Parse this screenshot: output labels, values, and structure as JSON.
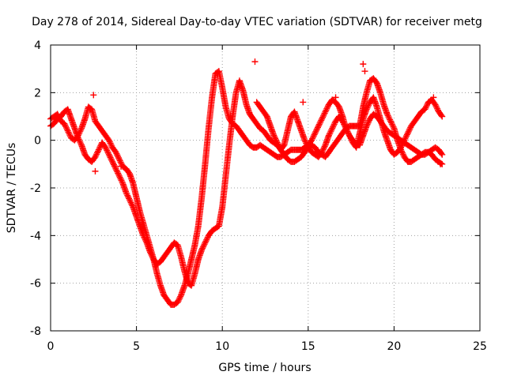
{
  "chart_data": {
    "type": "scatter",
    "title": "Day 278 of 2014, Sidereal Day-to-day VTEC variation (SDTVAR) for receiver metg",
    "xlabel": "GPS time / hours",
    "ylabel": "SDTVAR / TECUs",
    "xlim": [
      0,
      25
    ],
    "ylim": [
      -8,
      4
    ],
    "xticks": [
      0,
      5,
      10,
      15,
      20,
      25
    ],
    "yticks": [
      -8,
      -6,
      -4,
      -2,
      0,
      2,
      4
    ],
    "grid": true,
    "marker": "+",
    "series": [
      {
        "name": "SDTVAR",
        "color": "#ff0000",
        "segments": [
          {
            "x": [
              0.0,
              0.2,
              0.4,
              0.6,
              0.8,
              1.0,
              1.2,
              1.4,
              1.6,
              1.8,
              2.0,
              2.2,
              2.4,
              2.6,
              2.8,
              3.0,
              3.2,
              3.4,
              3.6,
              3.8,
              4.0,
              4.2,
              4.4,
              4.6,
              4.8,
              5.0,
              5.2,
              5.4,
              5.6,
              5.8,
              6.0,
              6.2,
              6.4,
              6.6,
              6.8,
              7.0,
              7.2,
              7.4,
              7.6,
              7.8,
              8.0,
              8.2,
              8.4,
              8.6,
              8.8,
              9.0,
              9.2,
              9.4,
              9.6,
              9.8,
              10.0,
              10.2,
              10.4,
              10.6,
              10.8,
              11.0,
              11.2,
              11.4,
              11.6,
              11.8,
              12.0,
              12.2,
              12.4,
              12.6,
              12.8,
              13.0,
              13.2,
              13.4,
              13.6,
              13.8,
              14.0,
              14.2,
              14.4,
              14.6,
              14.8,
              15.0,
              15.2,
              15.4,
              15.6,
              15.8,
              16.0,
              16.2,
              16.4,
              16.6,
              16.8,
              17.0,
              17.2,
              17.4,
              17.6,
              17.8,
              18.0,
              18.2,
              18.4,
              18.6,
              18.8,
              19.0,
              19.2,
              19.4,
              19.6,
              19.8,
              20.0,
              20.2,
              20.4,
              20.6,
              20.8,
              21.0,
              21.2,
              21.4,
              21.6,
              21.8,
              22.0,
              22.2,
              22.4,
              22.6,
              22.8
            ],
            "y": [
              0.9,
              1.0,
              1.1,
              0.8,
              0.7,
              0.4,
              0.1,
              0.0,
              0.2,
              0.5,
              0.9,
              1.4,
              1.3,
              0.8,
              0.6,
              0.4,
              0.2,
              0.0,
              -0.3,
              -0.5,
              -0.8,
              -1.1,
              -1.2,
              -1.4,
              -1.8,
              -2.4,
              -3.0,
              -3.5,
              -4.0,
              -4.5,
              -5.0,
              -5.6,
              -6.1,
              -6.5,
              -6.7,
              -6.9,
              -6.9,
              -6.8,
              -6.5,
              -6.1,
              -5.6,
              -5.0,
              -4.4,
              -3.6,
              -2.4,
              -1.0,
              0.5,
              1.8,
              2.8,
              2.9,
              2.2,
              1.4,
              0.9,
              0.7,
              0.6,
              0.4,
              0.2,
              0.0,
              -0.2,
              -0.3,
              -0.3,
              -0.2,
              -0.3,
              -0.4,
              -0.5,
              -0.6,
              -0.7,
              -0.7,
              -0.6,
              -0.5,
              -0.4,
              -0.4,
              -0.4,
              -0.4,
              -0.3,
              -0.2,
              0.0,
              0.3,
              0.6,
              0.9,
              1.2,
              1.5,
              1.7,
              1.6,
              1.4,
              1.0,
              0.5,
              0.2,
              0.0,
              -0.2,
              -0.2,
              0.2,
              0.6,
              0.9,
              1.1,
              1.0,
              0.8,
              0.6,
              0.4,
              0.3,
              0.2,
              0.1,
              0.0,
              -0.1,
              -0.2,
              -0.3,
              -0.4,
              -0.5,
              -0.6,
              -0.6,
              -0.5,
              -0.4,
              -0.3,
              -0.4,
              -0.6
            ]
          },
          {
            "x": [
              0.0,
              0.2,
              0.4,
              0.6,
              0.8,
              1.0,
              1.2,
              1.4,
              1.6,
              1.8,
              2.0,
              2.2,
              2.4,
              2.6,
              2.8,
              3.0,
              3.2,
              3.4,
              3.6,
              3.8,
              4.0,
              4.2,
              4.4,
              4.6,
              4.8,
              5.0,
              5.2,
              5.4,
              5.6,
              5.8,
              6.0,
              6.2,
              6.4,
              6.6,
              6.8,
              7.0,
              7.2,
              7.4,
              7.6,
              7.8,
              8.0,
              8.2,
              8.4,
              8.6,
              8.8,
              9.0,
              9.2,
              9.4,
              9.6,
              9.8,
              10.0,
              10.2,
              10.4,
              10.6,
              10.8,
              11.0,
              11.2,
              11.4,
              11.6,
              11.8,
              12.0,
              12.2,
              12.4,
              12.6,
              12.8,
              13.0,
              13.2,
              13.4,
              13.6,
              13.8,
              14.0,
              14.2,
              14.4,
              14.6,
              14.8,
              15.0,
              15.2,
              15.4,
              15.6,
              15.8,
              16.0,
              16.2,
              16.4,
              16.6,
              16.8,
              17.0,
              17.2,
              17.4,
              17.6,
              17.8,
              18.0,
              18.2,
              18.4,
              18.6,
              18.8,
              19.0,
              19.2,
              19.4,
              19.6,
              19.8,
              20.0,
              20.2,
              20.4,
              20.6,
              20.8,
              21.0,
              21.2,
              21.4,
              21.6,
              21.8,
              22.0,
              22.2,
              22.4,
              22.6,
              22.8
            ],
            "y": [
              0.6,
              0.7,
              0.9,
              1.0,
              1.2,
              1.3,
              0.9,
              0.5,
              0.1,
              -0.2,
              -0.6,
              -0.8,
              -0.9,
              -0.7,
              -0.4,
              -0.1,
              -0.3,
              -0.6,
              -0.9,
              -1.2,
              -1.5,
              -1.8,
              -2.2,
              -2.5,
              -2.8,
              -3.2,
              -3.6,
              -4.0,
              -4.3,
              -4.7,
              -5.0,
              -5.2,
              -5.1,
              -4.9,
              -4.7,
              -4.5,
              -4.3,
              -4.4,
              -4.9,
              -5.5,
              -6.0,
              -6.1,
              -5.6,
              -5.0,
              -4.6,
              -4.3,
              -4.0,
              -3.8,
              -3.7,
              -3.6,
              -2.8,
              -1.5,
              -0.2,
              1.0,
              2.0,
              2.5,
              2.1,
              1.5,
              1.1,
              0.9,
              0.7,
              0.5,
              0.4,
              0.2,
              0.0,
              -0.1,
              -0.2,
              -0.4,
              -0.6,
              -0.8,
              -0.9,
              -0.9,
              -0.8,
              -0.7,
              -0.5,
              -0.3,
              -0.2,
              -0.3,
              -0.5,
              -0.6,
              -0.7,
              -0.5,
              -0.3,
              -0.1,
              0.1,
              0.3,
              0.5,
              0.6,
              0.6,
              0.6,
              0.6,
              1.4,
              2.0,
              2.5,
              2.6,
              2.4,
              2.0,
              1.5,
              1.1,
              0.8,
              0.5,
              0.0,
              -0.4,
              -0.7,
              -0.9,
              -0.9,
              -0.8,
              -0.7,
              -0.6,
              -0.5,
              -0.5,
              -0.6,
              -0.8,
              -0.9,
              -1.0
            ]
          },
          {
            "x": [
              12.0,
              12.2,
              12.4,
              12.6,
              12.8,
              13.0,
              13.2,
              13.4,
              13.6,
              13.8,
              14.0,
              14.2,
              14.4,
              14.6,
              14.8,
              15.0,
              15.2,
              15.4,
              15.6,
              15.8,
              16.0,
              16.2,
              16.4,
              16.6,
              16.8,
              17.0,
              17.2,
              17.4,
              17.6,
              17.8,
              18.0,
              18.2,
              18.4,
              18.6,
              18.8,
              19.0,
              19.2,
              19.4,
              19.6,
              19.8,
              20.0,
              20.2,
              20.4,
              20.6,
              20.8,
              21.0,
              21.2,
              21.4,
              21.6,
              21.8,
              22.0,
              22.2,
              22.4,
              22.6,
              22.8
            ],
            "y": [
              1.6,
              1.4,
              1.2,
              1.0,
              0.6,
              0.2,
              -0.1,
              -0.4,
              -0.2,
              0.4,
              1.0,
              1.2,
              0.8,
              0.4,
              0.0,
              -0.3,
              -0.5,
              -0.6,
              -0.7,
              -0.5,
              -0.2,
              0.2,
              0.5,
              0.8,
              1.0,
              0.8,
              0.5,
              0.2,
              -0.1,
              -0.3,
              0.3,
              0.9,
              1.3,
              1.6,
              1.8,
              1.4,
              0.9,
              0.4,
              0.0,
              -0.4,
              -0.6,
              -0.5,
              -0.3,
              0.0,
              0.3,
              0.6,
              0.8,
              1.0,
              1.2,
              1.3,
              1.6,
              1.7,
              1.5,
              1.2,
              1.0
            ]
          }
        ],
        "outliers": {
          "x": [
            2.5,
            2.6,
            4.1,
            11.9,
            14.7,
            16.6,
            18.2,
            18.3,
            22.3,
            22.7
          ],
          "y": [
            1.9,
            -1.3,
            -1.1,
            3.3,
            1.6,
            1.8,
            3.2,
            2.9,
            1.8,
            -1.0
          ]
        }
      }
    ]
  }
}
